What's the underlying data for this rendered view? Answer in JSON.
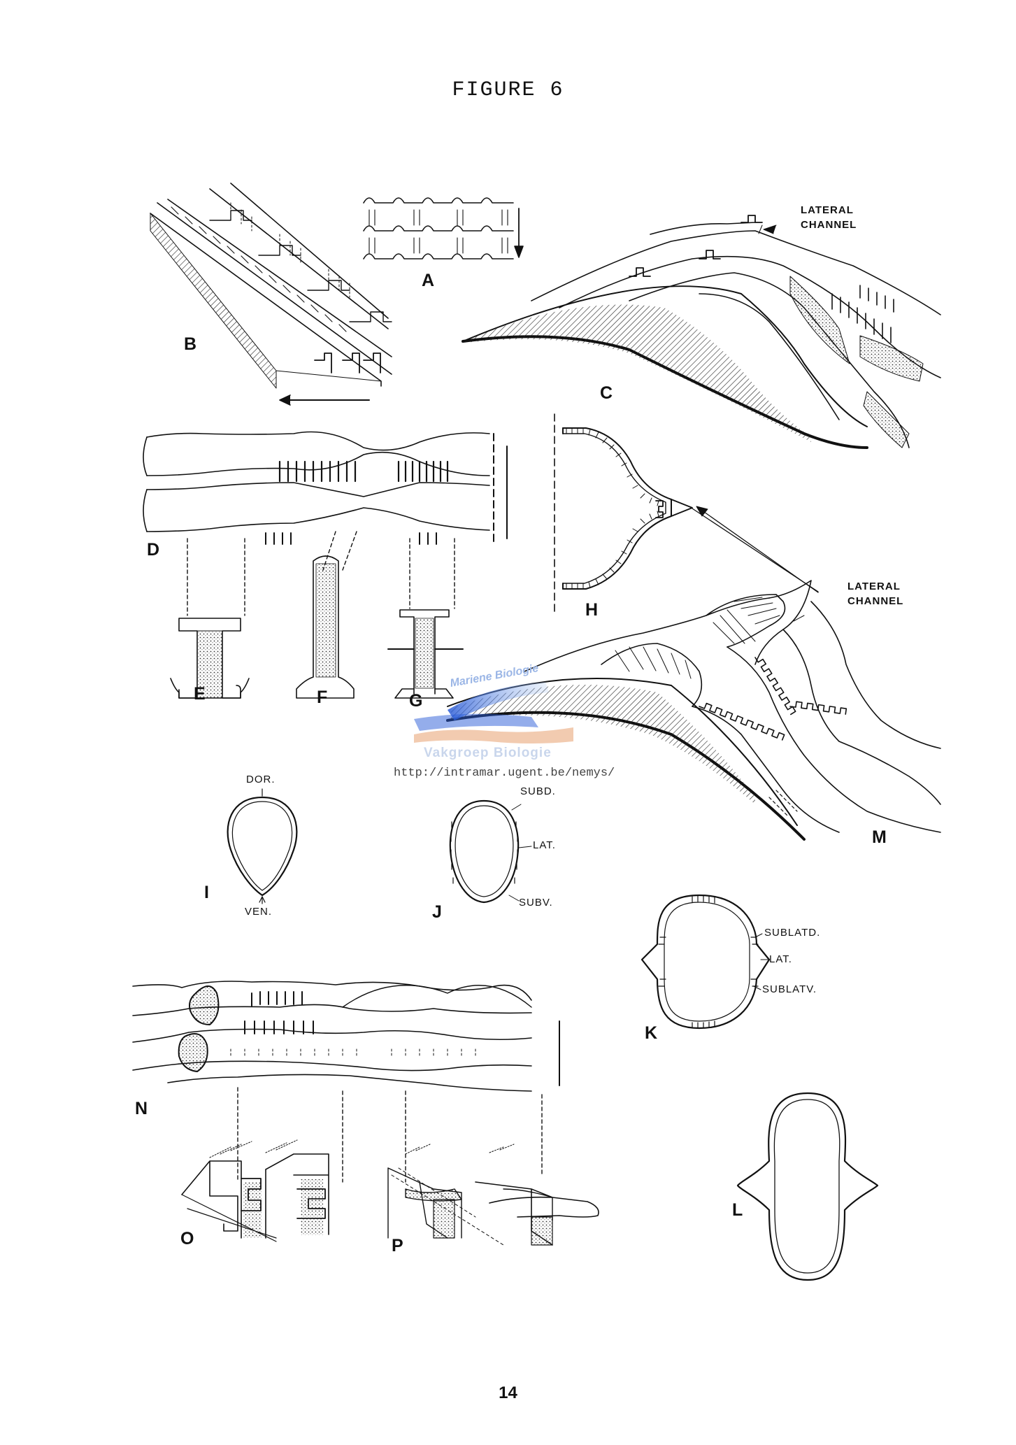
{
  "figure": {
    "title": "FIGURE 6",
    "page_number": "14"
  },
  "panel_labels": {
    "A": "A",
    "B": "B",
    "C": "C",
    "D": "D",
    "E": "E",
    "F": "F",
    "G": "G",
    "H": "H",
    "I": "I",
    "J": "J",
    "K": "K",
    "L": "L",
    "M": "M",
    "N": "N",
    "O": "O",
    "P": "P"
  },
  "annotations": {
    "lateral_channel_top": [
      "LATERAL",
      "CHANNEL"
    ],
    "lateral_channel_mid": [
      "LATERAL",
      "CHANNEL"
    ],
    "I": {
      "dor": "DOR.",
      "ven": "VEN."
    },
    "J": {
      "subd": "SUBD.",
      "lat": "LAT.",
      "subv": "SUBV."
    },
    "K": {
      "sublatd": "SUBLATD.",
      "lat": "LAT.",
      "sublatv": "SUBLATV."
    }
  },
  "watermark": {
    "line1": "Mariene Biologie",
    "line2": "Vakgroep Biologie",
    "url": "http://intramar.ugent.be/nemys/"
  },
  "colors": {
    "ink": "#111111",
    "watermark_blue": "#2a5bd7",
    "watermark_orange": "#e8a070"
  }
}
